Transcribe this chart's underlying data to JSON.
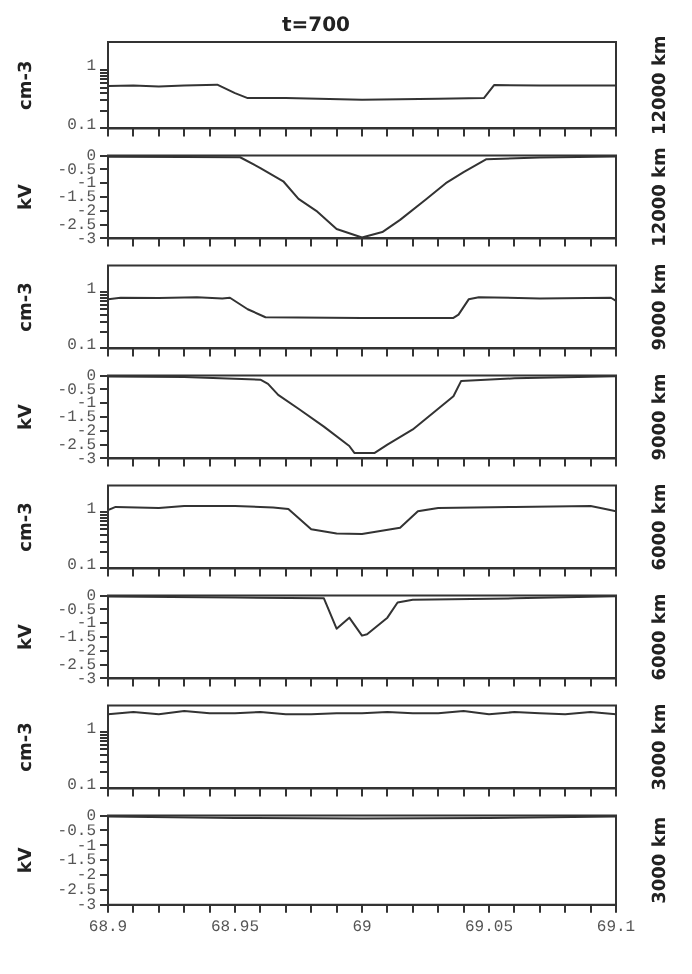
{
  "chart_data": [
    {
      "type": "line",
      "title": "t=700",
      "ylabel": "cm-3",
      "annotations": [
        "12000 km"
      ],
      "log": "y",
      "marker": "none",
      "tick_labels": "y",
      "color": "#333333",
      "xlim": [
        68.9,
        69.1
      ],
      "ylim": [
        0.1,
        3
      ],
      "xticks": [
        68.9,
        {
          "value": 68.91,
          "label": null
        },
        {
          "value": 68.92,
          "label": null
        },
        {
          "value": 68.93,
          "label": null
        },
        {
          "value": 68.94,
          "label": null
        },
        68.95,
        {
          "value": 68.96,
          "label": null
        },
        {
          "value": 68.97,
          "label": null
        },
        {
          "value": 68.98,
          "label": null
        },
        {
          "value": 68.99,
          "label": null
        },
        69,
        {
          "value": 69.01,
          "label": null
        },
        {
          "value": 69.02,
          "label": null
        },
        {
          "value": 69.03,
          "label": null
        },
        {
          "value": 69.04,
          "label": null
        },
        69.05,
        {
          "value": 69.06,
          "label": null
        },
        {
          "value": 69.07,
          "label": null
        },
        {
          "value": 69.08,
          "label": null
        },
        {
          "value": 69.09,
          "label": null
        },
        69.1
      ],
      "yticks": [
        0.1,
        {
          "value": 0.2,
          "label": null
        },
        {
          "value": 0.3,
          "label": null
        },
        {
          "value": 0.4,
          "label": null
        },
        {
          "value": 0.5,
          "label": null
        },
        {
          "value": 0.6,
          "label": null
        },
        {
          "value": 0.7,
          "label": null
        },
        {
          "value": 0.8,
          "label": null
        },
        {
          "value": 0.9,
          "label": null
        },
        1
      ],
      "x": [
        68.9,
        68.91,
        68.92,
        68.93,
        68.943,
        68.95,
        68.955,
        68.97,
        69,
        69.03,
        69.048,
        69.052,
        69.07,
        69.1
      ],
      "values": [
        0.53,
        0.54,
        0.52,
        0.54,
        0.56,
        0.4,
        0.33,
        0.33,
        0.31,
        0.32,
        0.33,
        0.55,
        0.54,
        0.54
      ]
    },
    {
      "type": "line",
      "ylabel": "kV",
      "annotations": [
        "12000 km"
      ],
      "marker": "none",
      "tick_labels": "y",
      "color": "#333333",
      "xlim": [
        68.9,
        69.1
      ],
      "ylim": [
        -3,
        0
      ],
      "xticks": [
        68.9,
        {
          "value": 68.91,
          "label": null
        },
        {
          "value": 68.92,
          "label": null
        },
        {
          "value": 68.93,
          "label": null
        },
        {
          "value": 68.94,
          "label": null
        },
        68.95,
        {
          "value": 68.96,
          "label": null
        },
        {
          "value": 68.97,
          "label": null
        },
        {
          "value": 68.98,
          "label": null
        },
        {
          "value": 68.99,
          "label": null
        },
        69,
        {
          "value": 69.01,
          "label": null
        },
        {
          "value": 69.02,
          "label": null
        },
        {
          "value": 69.03,
          "label": null
        },
        {
          "value": 69.04,
          "label": null
        },
        69.05,
        {
          "value": 69.06,
          "label": null
        },
        {
          "value": 69.07,
          "label": null
        },
        {
          "value": 69.08,
          "label": null
        },
        {
          "value": 69.09,
          "label": null
        },
        69.1
      ],
      "yticks": [
        -3,
        -2.5,
        -2,
        -1.5,
        -1,
        -0.5,
        0
      ],
      "x": [
        68.9,
        68.93,
        68.952,
        68.96,
        68.969,
        68.975,
        68.982,
        68.99,
        69,
        69.008,
        69.015,
        69.025,
        69.033,
        69.04,
        69.049,
        69.07,
        69.1
      ],
      "values": [
        -0.04,
        -0.05,
        -0.06,
        -0.45,
        -0.93,
        -1.57,
        -2.0,
        -2.66,
        -2.97,
        -2.77,
        -2.33,
        -1.6,
        -1.0,
        -0.6,
        -0.13,
        -0.07,
        -0.03
      ]
    },
    {
      "type": "line",
      "ylabel": "cm-3",
      "annotations": [
        "9000 km"
      ],
      "log": "y",
      "marker": "none",
      "tick_labels": "y",
      "color": "#333333",
      "xlim": [
        68.9,
        69.1
      ],
      "ylim": [
        0.1,
        3
      ],
      "xticks": [
        68.9,
        {
          "value": 68.91,
          "label": null
        },
        {
          "value": 68.92,
          "label": null
        },
        {
          "value": 68.93,
          "label": null
        },
        {
          "value": 68.94,
          "label": null
        },
        68.95,
        {
          "value": 68.96,
          "label": null
        },
        {
          "value": 68.97,
          "label": null
        },
        {
          "value": 68.98,
          "label": null
        },
        {
          "value": 68.99,
          "label": null
        },
        69,
        {
          "value": 69.01,
          "label": null
        },
        {
          "value": 69.02,
          "label": null
        },
        {
          "value": 69.03,
          "label": null
        },
        {
          "value": 69.04,
          "label": null
        },
        69.05,
        {
          "value": 69.06,
          "label": null
        },
        {
          "value": 69.07,
          "label": null
        },
        {
          "value": 69.08,
          "label": null
        },
        {
          "value": 69.09,
          "label": null
        },
        69.1
      ],
      "yticks": [
        0.1,
        {
          "value": 0.2,
          "label": null
        },
        {
          "value": 0.3,
          "label": null
        },
        {
          "value": 0.4,
          "label": null
        },
        {
          "value": 0.5,
          "label": null
        },
        {
          "value": 0.6,
          "label": null
        },
        {
          "value": 0.7,
          "label": null
        },
        {
          "value": 0.8,
          "label": null
        },
        {
          "value": 0.9,
          "label": null
        },
        1
      ],
      "x": [
        68.9,
        68.905,
        68.92,
        68.935,
        68.945,
        68.948,
        68.955,
        68.962,
        69,
        69.036,
        69.038,
        69.042,
        69.046,
        69.07,
        69.098,
        69.1
      ],
      "values": [
        0.75,
        0.8,
        0.79,
        0.82,
        0.78,
        0.8,
        0.5,
        0.36,
        0.35,
        0.35,
        0.4,
        0.75,
        0.82,
        0.78,
        0.8,
        0.7
      ]
    },
    {
      "type": "line",
      "ylabel": "kV",
      "annotations": [
        "9000 km"
      ],
      "marker": "none",
      "tick_labels": "y",
      "color": "#333333",
      "xlim": [
        68.9,
        69.1
      ],
      "ylim": [
        -3,
        0
      ],
      "xticks": [
        68.9,
        {
          "value": 68.91,
          "label": null
        },
        {
          "value": 68.92,
          "label": null
        },
        {
          "value": 68.93,
          "label": null
        },
        {
          "value": 68.94,
          "label": null
        },
        68.95,
        {
          "value": 68.96,
          "label": null
        },
        {
          "value": 68.97,
          "label": null
        },
        {
          "value": 68.98,
          "label": null
        },
        {
          "value": 68.99,
          "label": null
        },
        69,
        {
          "value": 69.01,
          "label": null
        },
        {
          "value": 69.02,
          "label": null
        },
        {
          "value": 69.03,
          "label": null
        },
        {
          "value": 69.04,
          "label": null
        },
        69.05,
        {
          "value": 69.06,
          "label": null
        },
        {
          "value": 69.07,
          "label": null
        },
        {
          "value": 69.08,
          "label": null
        },
        {
          "value": 69.09,
          "label": null
        },
        69.1
      ],
      "yticks": [
        -3,
        -2.5,
        -2,
        -1.5,
        -1,
        -0.5,
        0
      ],
      "x": [
        68.9,
        68.93,
        68.96,
        68.963,
        68.967,
        68.975,
        68.985,
        68.995,
        68.997,
        69.005,
        69.01,
        69.02,
        69.03,
        69.036,
        69.039,
        69.06,
        69.1
      ],
      "values": [
        -0.03,
        -0.05,
        -0.15,
        -0.3,
        -0.7,
        -1.2,
        -1.85,
        -2.55,
        -2.8,
        -2.8,
        -2.5,
        -1.95,
        -1.2,
        -0.75,
        -0.2,
        -0.1,
        -0.02
      ]
    },
    {
      "type": "line",
      "ylabel": "cm-3",
      "annotations": [
        "6000 km"
      ],
      "log": "y",
      "marker": "none",
      "tick_labels": "y",
      "color": "#333333",
      "xlim": [
        68.9,
        69.1
      ],
      "ylim": [
        0.1,
        3
      ],
      "xticks": [
        68.9,
        {
          "value": 68.91,
          "label": null
        },
        {
          "value": 68.92,
          "label": null
        },
        {
          "value": 68.93,
          "label": null
        },
        {
          "value": 68.94,
          "label": null
        },
        68.95,
        {
          "value": 68.96,
          "label": null
        },
        {
          "value": 68.97,
          "label": null
        },
        {
          "value": 68.98,
          "label": null
        },
        {
          "value": 68.99,
          "label": null
        },
        69,
        {
          "value": 69.01,
          "label": null
        },
        {
          "value": 69.02,
          "label": null
        },
        {
          "value": 69.03,
          "label": null
        },
        {
          "value": 69.04,
          "label": null
        },
        69.05,
        {
          "value": 69.06,
          "label": null
        },
        {
          "value": 69.07,
          "label": null
        },
        {
          "value": 69.08,
          "label": null
        },
        {
          "value": 69.09,
          "label": null
        },
        69.1
      ],
      "yticks": [
        0.1,
        {
          "value": 0.2,
          "label": null
        },
        {
          "value": 0.3,
          "label": null
        },
        {
          "value": 0.4,
          "label": null
        },
        {
          "value": 0.5,
          "label": null
        },
        {
          "value": 0.6,
          "label": null
        },
        {
          "value": 0.7,
          "label": null
        },
        {
          "value": 0.8,
          "label": null
        },
        {
          "value": 0.9,
          "label": null
        },
        1
      ],
      "x": [
        68.9,
        68.903,
        68.92,
        68.93,
        68.95,
        68.965,
        68.971,
        68.98,
        68.99,
        69,
        69.015,
        69.022,
        69.03,
        69.06,
        69.09,
        69.1
      ],
      "values": [
        1.1,
        1.25,
        1.2,
        1.3,
        1.3,
        1.22,
        1.15,
        0.5,
        0.42,
        0.41,
        0.53,
        1.05,
        1.2,
        1.25,
        1.3,
        1.05
      ]
    },
    {
      "type": "line",
      "ylabel": "kV",
      "annotations": [
        "6000 km"
      ],
      "marker": "none",
      "tick_labels": "y",
      "color": "#333333",
      "xlim": [
        68.9,
        69.1
      ],
      "ylim": [
        -3,
        0
      ],
      "xticks": [
        68.9,
        {
          "value": 68.91,
          "label": null
        },
        {
          "value": 68.92,
          "label": null
        },
        {
          "value": 68.93,
          "label": null
        },
        {
          "value": 68.94,
          "label": null
        },
        68.95,
        {
          "value": 68.96,
          "label": null
        },
        {
          "value": 68.97,
          "label": null
        },
        {
          "value": 68.98,
          "label": null
        },
        {
          "value": 68.99,
          "label": null
        },
        69,
        {
          "value": 69.01,
          "label": null
        },
        {
          "value": 69.02,
          "label": null
        },
        {
          "value": 69.03,
          "label": null
        },
        {
          "value": 69.04,
          "label": null
        },
        69.05,
        {
          "value": 69.06,
          "label": null
        },
        {
          "value": 69.07,
          "label": null
        },
        {
          "value": 69.08,
          "label": null
        },
        {
          "value": 69.09,
          "label": null
        },
        69.1
      ],
      "yticks": [
        -3,
        -2.5,
        -2,
        -1.5,
        -1,
        -0.5,
        0
      ],
      "x": [
        68.9,
        68.95,
        68.985,
        68.99,
        68.995,
        69,
        69.002,
        69.01,
        69.014,
        69.02,
        69.06,
        69.1
      ],
      "values": [
        -0.03,
        -0.07,
        -0.1,
        -1.2,
        -0.8,
        -1.45,
        -1.4,
        -0.8,
        -0.25,
        -0.15,
        -0.1,
        -0.02
      ]
    },
    {
      "type": "line",
      "ylabel": "cm-3",
      "annotations": [
        "3000 km"
      ],
      "log": "y",
      "marker": "none",
      "tick_labels": "y",
      "color": "#333333",
      "xlim": [
        68.9,
        69.1
      ],
      "ylim": [
        0.1,
        3
      ],
      "xticks": [
        68.9,
        {
          "value": 68.91,
          "label": null
        },
        {
          "value": 68.92,
          "label": null
        },
        {
          "value": 68.93,
          "label": null
        },
        {
          "value": 68.94,
          "label": null
        },
        68.95,
        {
          "value": 68.96,
          "label": null
        },
        {
          "value": 68.97,
          "label": null
        },
        {
          "value": 68.98,
          "label": null
        },
        {
          "value": 68.99,
          "label": null
        },
        69,
        {
          "value": 69.01,
          "label": null
        },
        {
          "value": 69.02,
          "label": null
        },
        {
          "value": 69.03,
          "label": null
        },
        {
          "value": 69.04,
          "label": null
        },
        69.05,
        {
          "value": 69.06,
          "label": null
        },
        {
          "value": 69.07,
          "label": null
        },
        {
          "value": 69.08,
          "label": null
        },
        {
          "value": 69.09,
          "label": null
        },
        69.1
      ],
      "yticks": [
        0.1,
        {
          "value": 0.2,
          "label": null
        },
        {
          "value": 0.3,
          "label": null
        },
        {
          "value": 0.4,
          "label": null
        },
        {
          "value": 0.5,
          "label": null
        },
        {
          "value": 0.6,
          "label": null
        },
        {
          "value": 0.7,
          "label": null
        },
        {
          "value": 0.8,
          "label": null
        },
        {
          "value": 0.9,
          "label": null
        },
        1
      ],
      "x": [
        68.9,
        68.91,
        68.92,
        68.93,
        68.94,
        68.95,
        68.96,
        68.97,
        68.98,
        68.99,
        69,
        69.01,
        69.02,
        69.03,
        69.04,
        69.05,
        69.06,
        69.07,
        69.08,
        69.09,
        69.1
      ],
      "values": [
        2.1,
        2.3,
        2.1,
        2.4,
        2.2,
        2.2,
        2.3,
        2.1,
        2.1,
        2.2,
        2.2,
        2.3,
        2.2,
        2.2,
        2.4,
        2.1,
        2.3,
        2.2,
        2.1,
        2.3,
        2.1
      ]
    },
    {
      "type": "line",
      "ylabel": "kV",
      "annotations": [
        "3000 km"
      ],
      "marker": "none",
      "color": "#333333",
      "xlim": [
        68.9,
        69.1
      ],
      "ylim": [
        -3,
        0
      ],
      "xticks": [
        68.9,
        {
          "value": 68.91,
          "label": null
        },
        {
          "value": 68.92,
          "label": null
        },
        {
          "value": 68.93,
          "label": null
        },
        {
          "value": 68.94,
          "label": null
        },
        68.95,
        {
          "value": 68.96,
          "label": null
        },
        {
          "value": 68.97,
          "label": null
        },
        {
          "value": 68.98,
          "label": null
        },
        {
          "value": 68.99,
          "label": null
        },
        69,
        {
          "value": 69.01,
          "label": null
        },
        {
          "value": 69.02,
          "label": null
        },
        {
          "value": 69.03,
          "label": null
        },
        {
          "value": 69.04,
          "label": null
        },
        69.05,
        {
          "value": 69.06,
          "label": null
        },
        {
          "value": 69.07,
          "label": null
        },
        {
          "value": 69.08,
          "label": null
        },
        {
          "value": 69.09,
          "label": null
        },
        69.1
      ],
      "yticks": [
        -3,
        -2.5,
        -2,
        -1.5,
        -1,
        -0.5,
        0
      ],
      "x": [
        68.9,
        68.95,
        69,
        69.05,
        69.1
      ],
      "values": [
        -0.03,
        -0.08,
        -0.1,
        -0.08,
        -0.03
      ]
    }
  ]
}
